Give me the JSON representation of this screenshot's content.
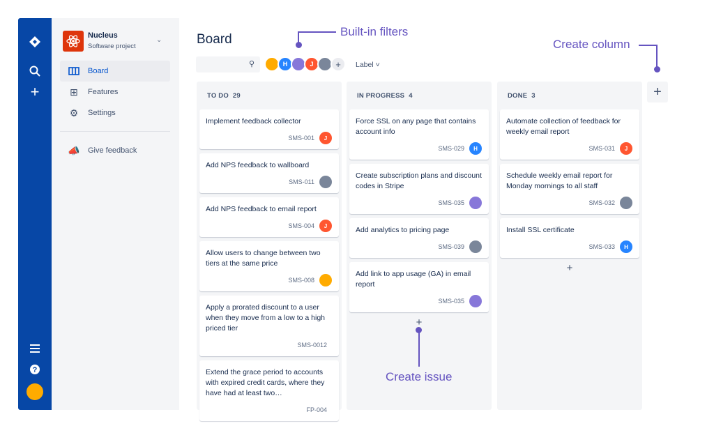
{
  "global_nav": {
    "icons": [
      "jira-logo-icon",
      "search-icon",
      "plus-icon",
      "menu-icon",
      "help-icon",
      "user-avatar"
    ]
  },
  "project": {
    "name": "Nucleus",
    "type": "Software project"
  },
  "nav": [
    {
      "label": "Board",
      "icon": "board-icon",
      "active": true
    },
    {
      "label": "Features",
      "icon": "features-icon"
    },
    {
      "label": "Settings",
      "icon": "gear-icon"
    }
  ],
  "feedback": "Give feedback",
  "board": {
    "title": "Board",
    "label_filter": "Label",
    "search_placeholder": ""
  },
  "filter_avatars": [
    {
      "type": "face",
      "color": "#FFAB00"
    },
    {
      "type": "initial",
      "text": "H",
      "color": "#2684FF"
    },
    {
      "type": "face",
      "color": "#8777D9"
    },
    {
      "type": "initial",
      "text": "J",
      "color": "#FF5630"
    },
    {
      "type": "face",
      "color": "#7A869A"
    },
    {
      "type": "add",
      "text": "+",
      "color": "#EBECF0"
    }
  ],
  "columns": [
    {
      "name": "TO DO",
      "count": "29",
      "cards": [
        {
          "title": "Implement feedback collector",
          "key": "SMS-001",
          "assignee": "J",
          "color": "#FF5630"
        },
        {
          "title": "Add NPS feedback to wallboard",
          "key": "SMS-011",
          "assignee": "",
          "color": "#7A869A"
        },
        {
          "title": "Add NPS feedback to email report",
          "key": "SMS-004",
          "assignee": "J",
          "color": "#FF5630"
        },
        {
          "title": "Allow users to change between two tiers at the same price",
          "key": "SMS-008",
          "assignee": "",
          "color": "#FFAB00"
        },
        {
          "title": "Apply a prorated discount to a user when they move from a low to a high priced tier",
          "key": "SMS-0012",
          "assignee": null,
          "color": null
        },
        {
          "title": "Extend the grace period to accounts with expired credit cards, where they have had at least two…",
          "key": "FP-004",
          "assignee": null,
          "color": null
        }
      ]
    },
    {
      "name": "IN PROGRESS",
      "count": "4",
      "cards": [
        {
          "title": "Force SSL on any page that contains account info",
          "key": "SMS-029",
          "assignee": "H",
          "color": "#2684FF"
        },
        {
          "title": "Create subscription plans and discount codes in Stripe",
          "key": "SMS-035",
          "assignee": "",
          "color": "#8777D9"
        },
        {
          "title": "Add analytics to pricing page",
          "key": "SMS-039",
          "assignee": "",
          "color": "#7A869A"
        },
        {
          "title": "Add link to app usage (GA) in email report",
          "key": "SMS-035",
          "assignee": "",
          "color": "#8777D9"
        }
      ]
    },
    {
      "name": "DONE",
      "count": "3",
      "cards": [
        {
          "title": "Automate collection of feedback for weekly email report",
          "key": "SMS-031",
          "assignee": "J",
          "color": "#FF5630"
        },
        {
          "title": "Schedule weekly email report for Monday mornings to all staff",
          "key": "SMS-032",
          "assignee": "",
          "color": "#7A869A"
        },
        {
          "title": "Install SSL certificate",
          "key": "SMS-033",
          "assignee": "H",
          "color": "#2684FF"
        }
      ]
    }
  ],
  "annotations": {
    "filters": "Built-in filters",
    "column": "Create column",
    "issue": "Create issue"
  },
  "colors": {
    "accent": "#6554C0",
    "nav": "#0747A6",
    "brand": "#0052CC"
  }
}
